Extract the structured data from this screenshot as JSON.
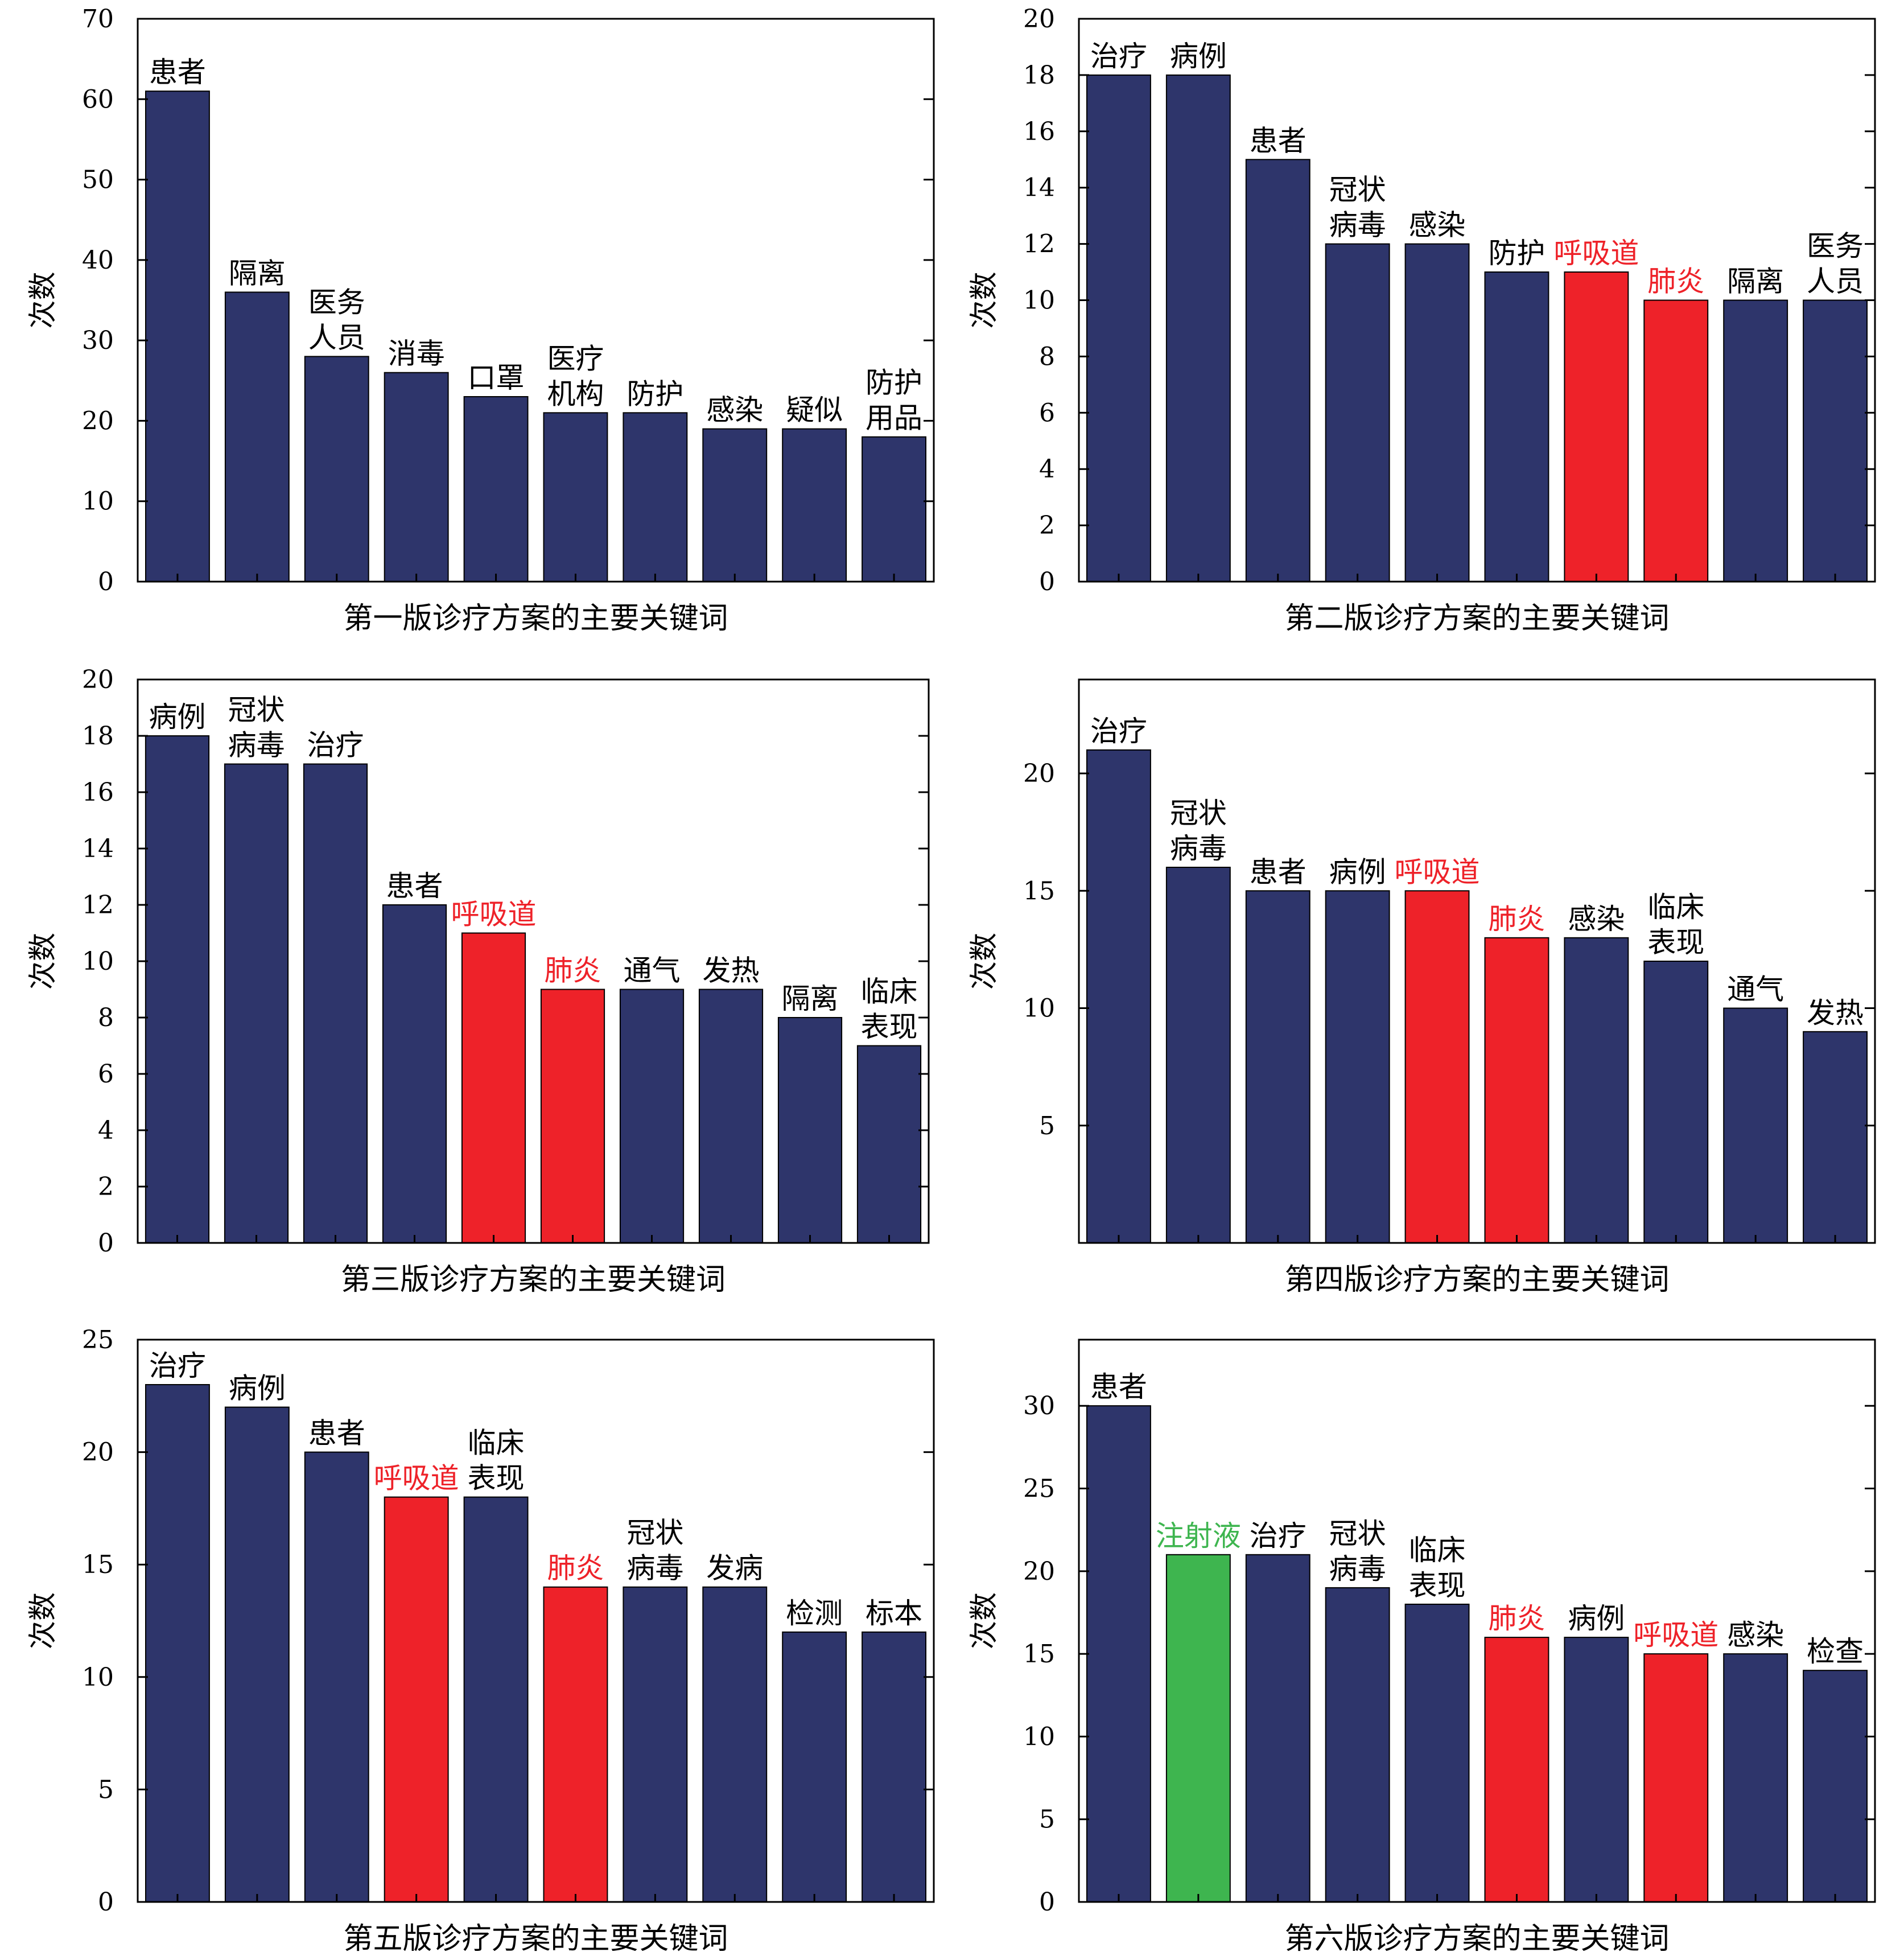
{
  "colors": {
    "default_bar": "#2e356b",
    "highlight_red": "#ee2229",
    "highlight_green": "#3eb54f",
    "axis": "#000000"
  },
  "chart_data": [
    {
      "type": "bar",
      "xlabel": "第一版诊疗方案的主要关键词",
      "ylabel": "次数",
      "ylim": [
        0,
        70
      ],
      "yticks": [
        0,
        10,
        20,
        30,
        40,
        50,
        60,
        70
      ],
      "categories": [
        "患者",
        "隔离",
        "医务人员",
        "消毒",
        "口罩",
        "医疗机构",
        "防护",
        "感染",
        "疑似",
        "防护用品"
      ],
      "label_lines": [
        [
          "患者"
        ],
        [
          "隔离"
        ],
        [
          "医务",
          "人员"
        ],
        [
          "消毒"
        ],
        [
          "口罩"
        ],
        [
          "医疗",
          "机构"
        ],
        [
          "防护"
        ],
        [
          "感染"
        ],
        [
          "疑似"
        ],
        [
          "防护",
          "用品"
        ]
      ],
      "values": [
        61,
        36,
        28,
        26,
        23,
        21,
        21,
        19,
        19,
        18
      ],
      "highlight": [
        "default",
        "default",
        "default",
        "default",
        "default",
        "default",
        "default",
        "default",
        "default",
        "default"
      ]
    },
    {
      "type": "bar",
      "xlabel": "第二版诊疗方案的主要关键词",
      "ylabel": "次数",
      "ylim": [
        0,
        20
      ],
      "yticks": [
        0,
        2,
        4,
        6,
        8,
        10,
        12,
        14,
        16,
        18,
        20
      ],
      "categories": [
        "治疗",
        "病例",
        "患者",
        "冠状病毒",
        "感染",
        "防护",
        "呼吸道",
        "肺炎",
        "隔离",
        "医务人员"
      ],
      "label_lines": [
        [
          "治疗"
        ],
        [
          "病例"
        ],
        [
          "患者"
        ],
        [
          "冠状",
          "病毒"
        ],
        [
          "感染"
        ],
        [
          "防护"
        ],
        [
          "呼吸道"
        ],
        [
          "肺炎"
        ],
        [
          "隔离"
        ],
        [
          "医务",
          "人员"
        ]
      ],
      "values": [
        18,
        18,
        15,
        12,
        12,
        11,
        11,
        10,
        10,
        10
      ],
      "highlight": [
        "default",
        "default",
        "default",
        "default",
        "default",
        "default",
        "red",
        "red",
        "default",
        "default"
      ]
    },
    {
      "type": "bar",
      "xlabel": "第三版诊疗方案的主要关键词",
      "ylabel": "次数",
      "ylim": [
        0,
        20
      ],
      "yticks": [
        0,
        2,
        4,
        6,
        8,
        10,
        12,
        14,
        16,
        18,
        20
      ],
      "categories": [
        "病例",
        "冠状病毒",
        "治疗",
        "患者",
        "呼吸道",
        "肺炎",
        "通气",
        "发热",
        "隔离",
        "临床表现"
      ],
      "label_lines": [
        [
          "病例"
        ],
        [
          "冠状",
          "病毒"
        ],
        [
          "治疗"
        ],
        [
          "患者"
        ],
        [
          "呼吸道"
        ],
        [
          "肺炎"
        ],
        [
          "通气"
        ],
        [
          "发热"
        ],
        [
          "隔离"
        ],
        [
          "临床",
          "表现"
        ]
      ],
      "values": [
        18,
        17,
        17,
        12,
        11,
        9,
        9,
        9,
        8,
        7
      ],
      "highlight": [
        "default",
        "default",
        "default",
        "default",
        "red",
        "red",
        "default",
        "default",
        "default",
        "default"
      ]
    },
    {
      "type": "bar",
      "xlabel": "第四版诊疗方案的主要关键词",
      "ylabel": "次数",
      "ylim": [
        0,
        24
      ],
      "yticks": [
        5,
        10,
        15,
        20
      ],
      "categories": [
        "治疗",
        "冠状病毒",
        "患者",
        "病例",
        "呼吸道",
        "肺炎",
        "感染",
        "临床表现",
        "通气",
        "发热"
      ],
      "label_lines": [
        [
          "治疗"
        ],
        [
          "冠状",
          "病毒"
        ],
        [
          "患者"
        ],
        [
          "病例"
        ],
        [
          "呼吸道"
        ],
        [
          "肺炎"
        ],
        [
          "感染"
        ],
        [
          "临床",
          "表现"
        ],
        [
          "通气"
        ],
        [
          "发热"
        ]
      ],
      "values": [
        21,
        16,
        15,
        15,
        15,
        13,
        13,
        12,
        10,
        9
      ],
      "highlight": [
        "default",
        "default",
        "default",
        "default",
        "red",
        "red",
        "default",
        "default",
        "default",
        "default"
      ]
    },
    {
      "type": "bar",
      "xlabel": "第五版诊疗方案的主要关键词",
      "ylabel": "次数",
      "ylim": [
        0,
        25
      ],
      "yticks": [
        0,
        5,
        10,
        15,
        20,
        25
      ],
      "categories": [
        "治疗",
        "病例",
        "患者",
        "呼吸道",
        "临床表现",
        "肺炎",
        "冠状病毒",
        "发病",
        "检测",
        "标本"
      ],
      "label_lines": [
        [
          "治疗"
        ],
        [
          "病例"
        ],
        [
          "患者"
        ],
        [
          "呼吸道"
        ],
        [
          "临床",
          "表现"
        ],
        [
          "肺炎"
        ],
        [
          "冠状",
          "病毒"
        ],
        [
          "发病"
        ],
        [
          "检测"
        ],
        [
          "标本"
        ]
      ],
      "values": [
        23,
        22,
        20,
        18,
        18,
        14,
        14,
        14,
        12,
        12
      ],
      "highlight": [
        "default",
        "default",
        "default",
        "red",
        "default",
        "red",
        "default",
        "default",
        "default",
        "default"
      ]
    },
    {
      "type": "bar",
      "xlabel": "第六版诊疗方案的主要关键词",
      "ylabel": "次数",
      "ylim": [
        0,
        34
      ],
      "yticks": [
        0,
        5,
        10,
        15,
        20,
        25,
        30
      ],
      "categories": [
        "患者",
        "注射液",
        "治疗",
        "冠状病毒",
        "临床表现",
        "肺炎",
        "病例",
        "呼吸道",
        "感染",
        "检查"
      ],
      "label_lines": [
        [
          "患者"
        ],
        [
          "注射液"
        ],
        [
          "治疗"
        ],
        [
          "冠状",
          "病毒"
        ],
        [
          "临床",
          "表现"
        ],
        [
          "肺炎"
        ],
        [
          "病例"
        ],
        [
          "呼吸道"
        ],
        [
          "感染"
        ],
        [
          "检查"
        ]
      ],
      "values": [
        30,
        21,
        21,
        19,
        18,
        16,
        16,
        15,
        15,
        14
      ],
      "highlight": [
        "default",
        "green",
        "default",
        "default",
        "default",
        "red",
        "default",
        "red",
        "default",
        "default"
      ]
    }
  ]
}
